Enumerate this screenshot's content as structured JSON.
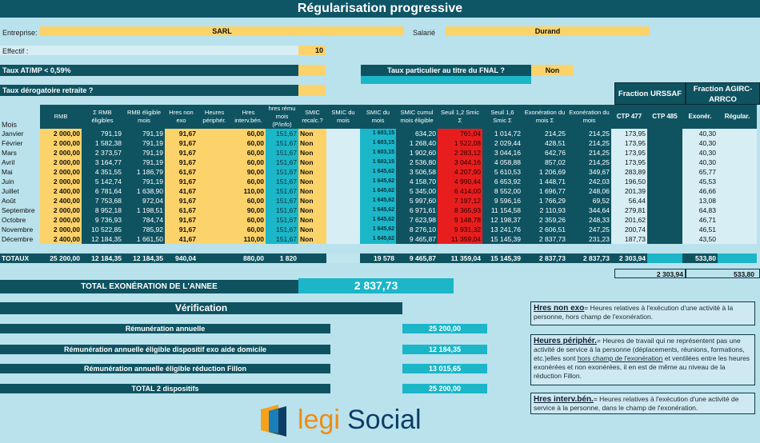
{
  "title": "Régularisation progressive",
  "entreprise": {
    "label": "Entreprise:",
    "value": "SARL"
  },
  "salarie": {
    "label": "Salarié",
    "value": "Durand"
  },
  "effectif": {
    "label": "Effectif :",
    "value": "10"
  },
  "taux_atmp": {
    "label": "Taux AT/MP < 0,59%"
  },
  "taux_fnal": {
    "label": "Taux particulier au titre du FNAL ?",
    "value": "Non"
  },
  "taux_retraite": {
    "label": "Taux dérogatoire retraite ?"
  },
  "fractions": {
    "urssaf": "Fraction URSSAF",
    "agirc": "Fraction AGIRC-ARRCO"
  },
  "headers": [
    "Mois",
    "RMB",
    "Σ RMB éligibles",
    "RMB éligible mois",
    "Hres non exo",
    "Heures périphér.",
    "Hres interv.bén.",
    "hres rému mois (P/info)",
    "SMIC recalc.?",
    "SMIC du mois",
    "SMIC du mois",
    "SMIC cumul mois éligible",
    "Seuil 1,2 Smic Σ",
    "Seuil 1,6 Smic Σ",
    "Exonération du mois Σ",
    "Exonération du mois",
    "CTP 477",
    "CTP 485",
    "Exonér.",
    "Régular."
  ],
  "rows": [
    [
      "Janvier",
      "2 000,00",
      "791,19",
      "791,19",
      "91,67",
      "",
      "60,00",
      "151,67",
      "Non",
      "",
      "1 603,15",
      "634,20",
      "761,04",
      "1 014,72",
      "214,25",
      "214,25",
      "173,95",
      "",
      "40,30",
      ""
    ],
    [
      "Février",
      "2 000,00",
      "1 582,38",
      "791,19",
      "91,67",
      "",
      "60,00",
      "151,67",
      "Non",
      "",
      "1 603,15",
      "1 268,40",
      "1 522,08",
      "2 029,44",
      "428,51",
      "214,25",
      "173,95",
      "",
      "40,30",
      ""
    ],
    [
      "Mars",
      "2 000,00",
      "2 373,57",
      "791,19",
      "91,67",
      "",
      "60,00",
      "151,67",
      "Non",
      "",
      "1 603,15",
      "1 902,60",
      "2 283,12",
      "3 044,16",
      "642,76",
      "214,25",
      "173,95",
      "",
      "40,30",
      ""
    ],
    [
      "Avril",
      "2 000,00",
      "3 164,77",
      "791,19",
      "91,67",
      "",
      "60,00",
      "151,67",
      "Non",
      "",
      "1 603,15",
      "2 536,80",
      "3 044,16",
      "4 058,88",
      "857,02",
      "214,25",
      "173,95",
      "",
      "40,30",
      ""
    ],
    [
      "Mai",
      "2 000,00",
      "4 351,55",
      "1 186,79",
      "61,67",
      "",
      "90,00",
      "151,67",
      "Non",
      "",
      "1 645,62",
      "3 506,58",
      "4 207,90",
      "5 610,53",
      "1 206,69",
      "349,67",
      "283,89",
      "",
      "65,77",
      ""
    ],
    [
      "Juin",
      "2 000,00",
      "5 142,74",
      "791,19",
      "91,67",
      "",
      "60,00",
      "151,67",
      "Non",
      "",
      "1 645,62",
      "4 158,70",
      "4 990,44",
      "6 653,92",
      "1 448,71",
      "242,03",
      "196,50",
      "",
      "45,53",
      ""
    ],
    [
      "Juillet",
      "2 400,00",
      "6 781,64",
      "1 638,90",
      "41,67",
      "",
      "110,00",
      "151,67",
      "Non",
      "",
      "1 645,62",
      "5 345,00",
      "6 414,00",
      "8 552,00",
      "1 696,77",
      "248,06",
      "201,39",
      "",
      "46,66",
      ""
    ],
    [
      "Août",
      "2 400,00",
      "7 753,68",
      "972,04",
      "91,67",
      "",
      "60,00",
      "151,67",
      "Non",
      "",
      "1 645,62",
      "5 997,60",
      "7 197,12",
      "9 596,16",
      "1 766,29",
      "69,52",
      "56,44",
      "",
      "13,08",
      ""
    ],
    [
      "Septembre",
      "2 000,00",
      "8 952,18",
      "1 198,51",
      "61,67",
      "",
      "90,00",
      "151,67",
      "Non",
      "",
      "1 645,62",
      "6 971,61",
      "8 365,93",
      "11 154,58",
      "2 110,93",
      "344,64",
      "279,81",
      "",
      "64,83",
      ""
    ],
    [
      "Octobre",
      "2 000,00",
      "9 736,93",
      "784,74",
      "91,67",
      "",
      "60,00",
      "151,67",
      "Non",
      "",
      "1 645,62",
      "7 623,98",
      "9 148,78",
      "12 198,37",
      "2 359,26",
      "248,33",
      "201,62",
      "",
      "46,71",
      ""
    ],
    [
      "Novembre",
      "2 000,00",
      "10 522,85",
      "785,92",
      "91,67",
      "",
      "60,00",
      "151,67",
      "Non",
      "",
      "1 645,62",
      "8 276,10",
      "9 931,32",
      "13 241,76",
      "2 606,51",
      "247,25",
      "200,74",
      "",
      "46,51",
      ""
    ],
    [
      "Décembre",
      "2 400,00",
      "12 184,35",
      "1 661,50",
      "41,67",
      "",
      "110,00",
      "151,67",
      "Non",
      "",
      "1 645,62",
      "9 465,87",
      "11 359,04",
      "15 145,39",
      "2 837,73",
      "231,23",
      "187,73",
      "",
      "43,50",
      ""
    ]
  ],
  "totaux": {
    "label": "TOTAUX",
    "rmb": "25 200,00",
    "sum_rmb": "12 184,35",
    "rmb_mois": "12 184,35",
    "hnon": "940,04",
    "hinterv": "880,00",
    "hremu": "1 820",
    "smic": "19 578",
    "smic_cumul": "9 465,87",
    "seuil12": "11 359,04",
    "seuil16": "15 145,39",
    "exo_sum": "2 837,73",
    "exo": "2 837,73",
    "ctp477": "2 303,94",
    "exoner": "533,80"
  },
  "subtotals": {
    "urssaf": "2 303,94",
    "agirc": "533,80"
  },
  "total_exo": {
    "label": "TOTAL EXONÉRATION DE L'ANNEE",
    "value": "2 837,73"
  },
  "verification": {
    "title": "Vérification",
    "items": [
      {
        "label": "Rémunération annuelle",
        "value": "25 200,00"
      },
      {
        "label": "Rémunération annuelle éligible dispositif exo aide domicile",
        "value": "12 184,35"
      },
      {
        "label": "Rémunération annuelle éligible réduction Fillon",
        "value": "13 015,65"
      },
      {
        "label": "TOTAL 2 dispositifs",
        "value": "25 200,00"
      }
    ]
  },
  "notes": {
    "n1_title": "Hres non exo",
    "n1_text": "= Heures relatives à l'exécution d'une activité à la personne, hors champ de l'exonération.",
    "n2_title": "Heures périphér.",
    "n2_text_a": "= Heures de travail qui ne représentent pas une activité de service à la personne (déplacements, réunions, formations, etc.)elles sont",
    "n2_text_u": "hors champ de l'exonération",
    "n2_text_b": "et ventilées entre les heures exonérées et non exonérées, il en est de même au niveau de la réduction Fillon.",
    "n3_title": "Hres interv.bén.",
    "n3_text": "= Heures relatives à l'exécution d'une activité de service à la personne, dans le champ de l'exonération."
  },
  "logo": {
    "legi": "legi",
    "social": "Social"
  }
}
